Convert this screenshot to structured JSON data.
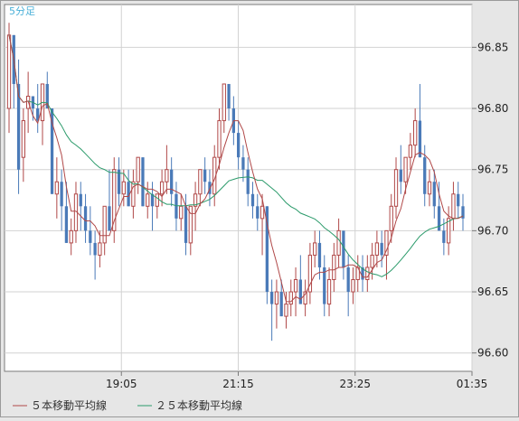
{
  "chart_data": {
    "type": "candlestick",
    "timeframe_label": "5分足",
    "ylim": [
      96.585,
      96.885
    ],
    "y_ticks": [
      "96.85",
      "96.80",
      "96.75",
      "96.70",
      "96.65",
      "96.60"
    ],
    "x_tick_labels": [
      "19:05",
      "21:15",
      "23:25",
      "01:35"
    ],
    "grid": true,
    "legend_position": "bottom",
    "colors": {
      "up": "#b04848",
      "down": "#4a7ab8",
      "ma5": "#b04848",
      "ma25": "#2a9a6a",
      "timeframe_text": "#4ab0d8"
    },
    "legend": [
      {
        "key": "ma5",
        "label": "５本移動平均線"
      },
      {
        "key": "ma25",
        "label": "２５本移動平均線"
      }
    ],
    "candles": [
      [
        96.8,
        96.87,
        96.78,
        96.86
      ],
      [
        96.86,
        96.86,
        96.8,
        96.82
      ],
      [
        96.82,
        96.84,
        96.73,
        96.75
      ],
      [
        96.76,
        96.8,
        96.74,
        96.79
      ],
      [
        96.8,
        96.83,
        96.78,
        96.81
      ],
      [
        96.81,
        96.81,
        96.79,
        96.8
      ],
      [
        96.8,
        96.82,
        96.78,
        96.79
      ],
      [
        96.79,
        96.82,
        96.77,
        96.82
      ],
      [
        96.82,
        96.83,
        96.8,
        96.8
      ],
      [
        96.8,
        96.8,
        96.73,
        96.73
      ],
      [
        96.73,
        96.76,
        96.71,
        96.74
      ],
      [
        96.74,
        96.75,
        96.7,
        96.72
      ],
      [
        96.72,
        96.74,
        96.69,
        96.69
      ],
      [
        96.69,
        96.71,
        96.68,
        96.7
      ],
      [
        96.7,
        96.74,
        96.69,
        96.73
      ],
      [
        96.73,
        96.74,
        96.7,
        96.72
      ],
      [
        96.72,
        96.73,
        96.69,
        96.7
      ],
      [
        96.7,
        96.72,
        96.68,
        96.69
      ],
      [
        96.69,
        96.7,
        96.66,
        96.68
      ],
      [
        96.68,
        96.7,
        96.67,
        96.69
      ],
      [
        96.69,
        96.72,
        96.68,
        96.72
      ],
      [
        96.72,
        96.75,
        96.7,
        96.7
      ],
      [
        96.7,
        96.76,
        96.69,
        96.75
      ],
      [
        96.75,
        96.76,
        96.72,
        96.73
      ],
      [
        96.73,
        96.75,
        96.72,
        96.74
      ],
      [
        96.74,
        96.75,
        96.72,
        96.72
      ],
      [
        96.72,
        96.75,
        96.71,
        96.74
      ],
      [
        96.74,
        96.76,
        96.73,
        96.76
      ],
      [
        96.76,
        96.76,
        96.72,
        96.72
      ],
      [
        96.72,
        96.74,
        96.71,
        96.73
      ],
      [
        96.73,
        96.74,
        96.7,
        96.72
      ],
      [
        96.72,
        96.73,
        96.71,
        96.73
      ],
      [
        96.73,
        96.75,
        96.72,
        96.74
      ],
      [
        96.74,
        96.77,
        96.73,
        96.75
      ],
      [
        96.75,
        96.76,
        96.72,
        96.73
      ],
      [
        96.73,
        96.74,
        96.7,
        96.71
      ],
      [
        96.71,
        96.73,
        96.7,
        96.72
      ],
      [
        96.72,
        96.73,
        96.68,
        96.69
      ],
      [
        96.69,
        96.72,
        96.68,
        96.72
      ],
      [
        96.72,
        96.74,
        96.7,
        96.73
      ],
      [
        96.73,
        96.75,
        96.72,
        96.75
      ],
      [
        96.75,
        96.76,
        96.73,
        96.74
      ],
      [
        96.74,
        96.75,
        96.72,
        96.73
      ],
      [
        96.73,
        96.77,
        96.72,
        96.76
      ],
      [
        96.76,
        96.8,
        96.75,
        96.79
      ],
      [
        96.79,
        96.82,
        96.78,
        96.82
      ],
      [
        96.82,
        96.82,
        96.79,
        96.8
      ],
      [
        96.8,
        96.81,
        96.77,
        96.78
      ],
      [
        96.78,
        96.79,
        96.75,
        96.76
      ],
      [
        96.76,
        96.77,
        96.74,
        96.75
      ],
      [
        96.75,
        96.76,
        96.72,
        96.73
      ],
      [
        96.73,
        96.74,
        96.71,
        96.72
      ],
      [
        96.72,
        96.73,
        96.7,
        96.71
      ],
      [
        96.71,
        96.73,
        96.68,
        96.72
      ],
      [
        96.72,
        96.72,
        96.64,
        96.65
      ],
      [
        96.65,
        96.66,
        96.61,
        96.64
      ],
      [
        96.64,
        96.66,
        96.62,
        96.65
      ],
      [
        96.65,
        96.66,
        96.63,
        96.63
      ],
      [
        96.63,
        96.65,
        96.62,
        96.64
      ],
      [
        96.64,
        96.66,
        96.63,
        96.65
      ],
      [
        96.65,
        96.67,
        96.63,
        96.66
      ],
      [
        96.66,
        96.68,
        96.64,
        96.64
      ],
      [
        96.64,
        96.66,
        96.63,
        96.65
      ],
      [
        96.65,
        96.69,
        96.64,
        96.68
      ],
      [
        96.68,
        96.7,
        96.67,
        96.69
      ],
      [
        96.69,
        96.7,
        96.66,
        96.67
      ],
      [
        96.67,
        96.68,
        96.63,
        96.64
      ],
      [
        96.64,
        96.67,
        96.63,
        96.66
      ],
      [
        96.66,
        96.69,
        96.65,
        96.68
      ],
      [
        96.68,
        96.71,
        96.67,
        96.7
      ],
      [
        96.7,
        96.7,
        96.66,
        96.67
      ],
      [
        96.67,
        96.68,
        96.63,
        96.65
      ],
      [
        96.65,
        96.67,
        96.64,
        96.66
      ],
      [
        96.66,
        96.68,
        96.65,
        96.67
      ],
      [
        96.67,
        96.68,
        96.65,
        96.66
      ],
      [
        96.66,
        96.68,
        96.65,
        96.67
      ],
      [
        96.67,
        96.69,
        96.66,
        96.68
      ],
      [
        96.68,
        96.7,
        96.67,
        96.69
      ],
      [
        96.69,
        96.7,
        96.67,
        96.68
      ],
      [
        96.68,
        96.7,
        96.66,
        96.7
      ],
      [
        96.7,
        96.73,
        96.69,
        96.72
      ],
      [
        96.72,
        96.76,
        96.71,
        96.75
      ],
      [
        96.75,
        96.77,
        96.73,
        96.74
      ],
      [
        96.74,
        96.76,
        96.73,
        96.76
      ],
      [
        96.76,
        96.78,
        96.75,
        96.77
      ],
      [
        96.77,
        96.8,
        96.76,
        96.79
      ],
      [
        96.79,
        96.82,
        96.76,
        96.76
      ],
      [
        96.76,
        96.77,
        96.72,
        96.73
      ],
      [
        96.73,
        96.75,
        96.72,
        96.74
      ],
      [
        96.74,
        96.75,
        96.71,
        96.72
      ],
      [
        96.72,
        96.74,
        96.7,
        96.7
      ],
      [
        96.7,
        96.71,
        96.68,
        96.69
      ],
      [
        96.69,
        96.72,
        96.68,
        96.71
      ],
      [
        96.71,
        96.74,
        96.7,
        96.73
      ],
      [
        96.73,
        96.74,
        96.71,
        96.72
      ],
      [
        96.72,
        96.73,
        96.7,
        96.71
      ]
    ]
  }
}
